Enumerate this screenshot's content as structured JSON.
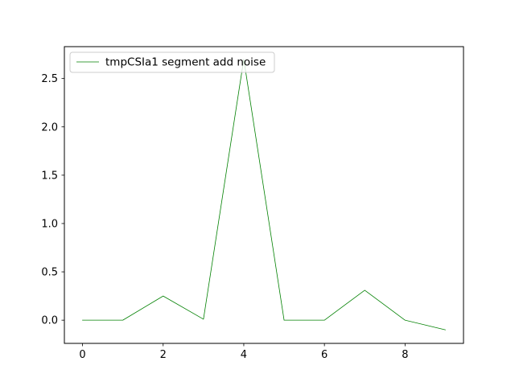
{
  "chart_data": {
    "type": "line",
    "title": "",
    "xlabel": "",
    "ylabel": "",
    "xlim": [
      -0.45,
      9.45
    ],
    "ylim": [
      -0.24,
      2.83
    ],
    "xticks": [
      0,
      2,
      4,
      6,
      8
    ],
    "yticks": [
      0.0,
      0.5,
      1.0,
      1.5,
      2.0,
      2.5
    ],
    "xtick_labels": [
      "0",
      "2",
      "4",
      "6",
      "8"
    ],
    "ytick_labels": [
      "0.0",
      "0.5",
      "1.0",
      "1.5",
      "2.0",
      "2.5"
    ],
    "grid": false,
    "legend_position": "top-left",
    "series": [
      {
        "name": "tmpCSIa1 segment add noise",
        "color": "#008000",
        "x": [
          0,
          1,
          2,
          3,
          4,
          5,
          6,
          7,
          8,
          9
        ],
        "y": [
          0.0,
          0.0,
          0.25,
          0.01,
          2.7,
          0.0,
          0.0,
          0.31,
          0.0,
          -0.1
        ]
      }
    ]
  }
}
